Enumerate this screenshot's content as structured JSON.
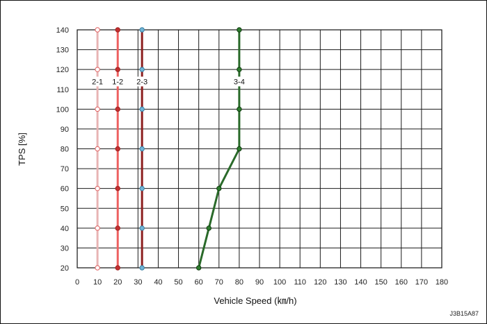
{
  "chart_data": {
    "type": "line",
    "xlabel": "Vehicle Speed (㎞/h)",
    "ylabel": "TPS [%]",
    "xlim": [
      0,
      180
    ],
    "ylim": [
      20,
      140
    ],
    "x_ticks": [
      0,
      10,
      20,
      30,
      40,
      50,
      60,
      70,
      80,
      90,
      100,
      110,
      120,
      130,
      140,
      150,
      160,
      170,
      180
    ],
    "y_ticks": [
      20,
      30,
      40,
      50,
      60,
      70,
      80,
      90,
      100,
      110,
      120,
      130,
      140
    ],
    "grid": true,
    "legend": "none",
    "series": [
      {
        "name": "2-1",
        "color": "#e8b4b4",
        "marker_fill": "#ffffff",
        "marker_stroke": "#e06060",
        "points": [
          [
            10,
            20
          ],
          [
            10,
            40
          ],
          [
            10,
            60
          ],
          [
            10,
            80
          ],
          [
            10,
            100
          ],
          [
            10,
            120
          ],
          [
            10,
            140
          ]
        ]
      },
      {
        "name": "1-2",
        "color": "#ee6060",
        "marker_fill": "#c23030",
        "marker_stroke": "#a02020",
        "points": [
          [
            20,
            20
          ],
          [
            20,
            40
          ],
          [
            20,
            60
          ],
          [
            20,
            80
          ],
          [
            20,
            100
          ],
          [
            20,
            120
          ],
          [
            20,
            140
          ]
        ]
      },
      {
        "name": "2-3",
        "color": "#8c1e1e",
        "marker_fill": "#6fb4d6",
        "marker_stroke": "#3a7ea0",
        "points": [
          [
            32,
            20
          ],
          [
            32,
            40
          ],
          [
            32,
            60
          ],
          [
            32,
            80
          ],
          [
            32,
            100
          ],
          [
            32,
            120
          ],
          [
            32,
            140
          ]
        ]
      },
      {
        "name": "3-4",
        "color": "#2a6a2a",
        "marker_fill": "#2e7d2e",
        "marker_stroke": "#0e3a0e",
        "points": [
          [
            60,
            20
          ],
          [
            65,
            40
          ],
          [
            70,
            60
          ],
          [
            80,
            80
          ],
          [
            80,
            100
          ],
          [
            80,
            120
          ],
          [
            80,
            140
          ]
        ]
      }
    ],
    "series_label_y": 115
  },
  "image_code": "J3B15A87"
}
